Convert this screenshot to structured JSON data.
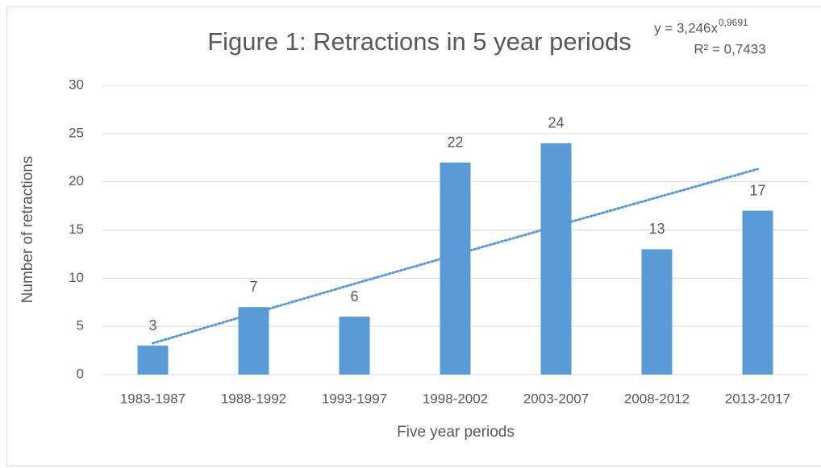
{
  "chart_data": {
    "type": "bar",
    "title": "Figure 1: Retractions in 5 year periods",
    "x_label": "Five year periods",
    "y_label": "Number of retractions",
    "categories": [
      "1983-1987",
      "1988-1992",
      "1993-1997",
      "1998-2002",
      "2003-2007",
      "2008-2012",
      "2013-2017"
    ],
    "values": [
      3,
      7,
      6,
      22,
      24,
      13,
      17
    ],
    "color": "#5b9bd5",
    "ylim": [
      0,
      30
    ],
    "yticks": [
      0,
      5,
      10,
      15,
      20,
      25,
      30
    ],
    "grid": true,
    "trendline": {
      "equation": "y = 3,246x",
      "exponent": "0,9691",
      "r_squared": "R² = 0,7433",
      "values": [
        3.25,
        6.35,
        9.42,
        12.43,
        15.41,
        18.37,
        21.32
      ],
      "color": "#5b9bd5"
    }
  }
}
